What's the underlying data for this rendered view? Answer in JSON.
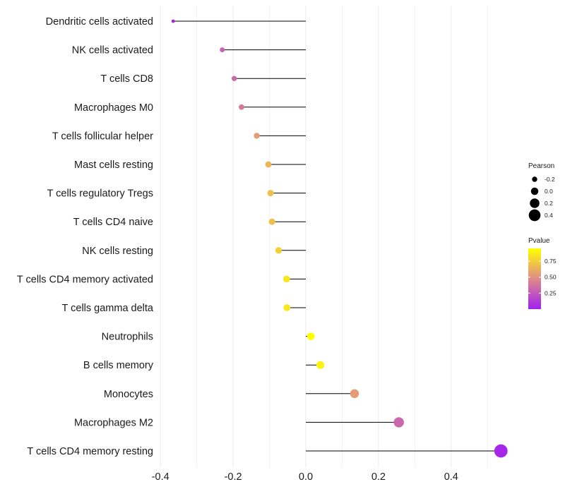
{
  "chart_data": {
    "type": "lollipop",
    "title": "",
    "xlabel": "",
    "ylabel": "",
    "xlim": [
      -0.4,
      0.54
    ],
    "x_ticks": [
      -0.4,
      -0.2,
      0.0,
      0.2,
      0.4
    ],
    "x_tick_labels": [
      "-0.4",
      "-0.2",
      "0.0",
      "0.2",
      "0.4"
    ],
    "grid": "vertical",
    "categories": [
      "Dendritic cells activated",
      "NK cells activated",
      "T cells CD8",
      "Macrophages M0",
      "T cells follicular helper",
      "Mast cells resting",
      "T cells regulatory  Tregs ",
      "T cells CD4 naive",
      "NK cells resting",
      "T cells CD4 memory activated",
      "T cells gamma delta",
      "Neutrophils",
      "B cells memory",
      "Monocytes",
      "Macrophages M2",
      "T cells CD4 memory resting"
    ],
    "values": [
      -0.365,
      -0.23,
      -0.197,
      -0.177,
      -0.135,
      -0.103,
      -0.097,
      -0.093,
      -0.075,
      -0.053,
      -0.052,
      0.014,
      0.04,
      0.134,
      0.256,
      0.537
    ],
    "pvalues": [
      0.02,
      0.3,
      0.33,
      0.4,
      0.55,
      0.66,
      0.69,
      0.7,
      0.76,
      0.85,
      0.86,
      0.97,
      0.9,
      0.55,
      0.32,
      0.03
    ],
    "size_legend": {
      "title": "Pearson",
      "labels": [
        "-0.2",
        "0.0",
        "0.2",
        "0.4"
      ],
      "values": [
        -0.2,
        0.0,
        0.2,
        0.4
      ]
    },
    "color_legend": {
      "title": "Pvalue",
      "labels": [
        "0.75",
        "0.50",
        "0.25"
      ],
      "values": [
        0.75,
        0.5,
        0.25
      ],
      "range": [
        0.0,
        0.95
      ],
      "low_color": "#a020f0",
      "mid_color": "#e08a8a",
      "high_color": "#ffff00"
    },
    "line_color": "#000000",
    "grid_color": "#ebebeb"
  }
}
